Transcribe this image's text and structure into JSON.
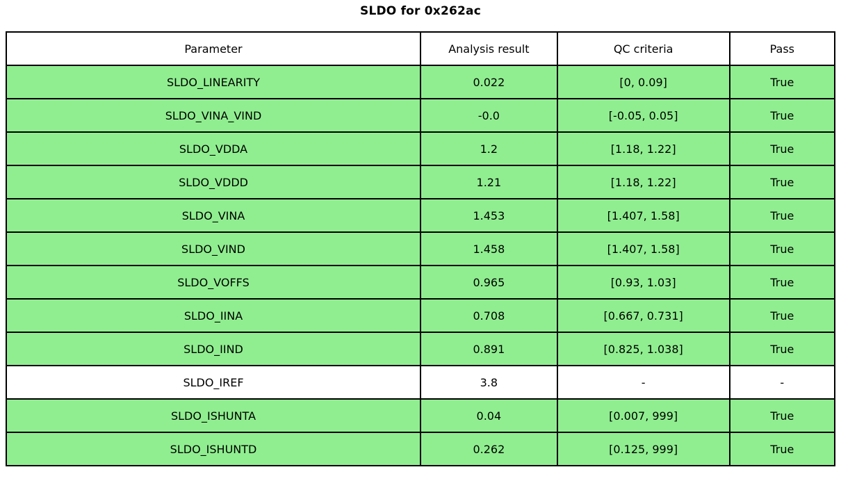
{
  "title": "SLDO for 0x262ac",
  "chart_data": {
    "type": "table",
    "title": "SLDO for 0x262ac",
    "columns": [
      "Parameter",
      "Analysis result",
      "QC criteria",
      "Pass"
    ],
    "rows": [
      {
        "parameter": "SLDO_LINEARITY",
        "result": "0.022",
        "criteria": "[0, 0.09]",
        "pass": "True",
        "highlighted": true
      },
      {
        "parameter": "SLDO_VINA_VIND",
        "result": "-0.0",
        "criteria": "[-0.05, 0.05]",
        "pass": "True",
        "highlighted": true
      },
      {
        "parameter": "SLDO_VDDA",
        "result": "1.2",
        "criteria": "[1.18, 1.22]",
        "pass": "True",
        "highlighted": true
      },
      {
        "parameter": "SLDO_VDDD",
        "result": "1.21",
        "criteria": "[1.18, 1.22]",
        "pass": "True",
        "highlighted": true
      },
      {
        "parameter": "SLDO_VINA",
        "result": "1.453",
        "criteria": "[1.407, 1.58]",
        "pass": "True",
        "highlighted": true
      },
      {
        "parameter": "SLDO_VIND",
        "result": "1.458",
        "criteria": "[1.407, 1.58]",
        "pass": "True",
        "highlighted": true
      },
      {
        "parameter": "SLDO_VOFFS",
        "result": "0.965",
        "criteria": "[0.93, 1.03]",
        "pass": "True",
        "highlighted": true
      },
      {
        "parameter": "SLDO_IINA",
        "result": "0.708",
        "criteria": "[0.667, 0.731]",
        "pass": "True",
        "highlighted": true
      },
      {
        "parameter": "SLDO_IIND",
        "result": "0.891",
        "criteria": "[0.825, 1.038]",
        "pass": "True",
        "highlighted": true
      },
      {
        "parameter": "SLDO_IREF",
        "result": "3.8",
        "criteria": "-",
        "pass": "-",
        "highlighted": false
      },
      {
        "parameter": "SLDO_ISHUNTA",
        "result": "0.04",
        "criteria": "[0.007, 999]",
        "pass": "True",
        "highlighted": true
      },
      {
        "parameter": "SLDO_ISHUNTD",
        "result": "0.262",
        "criteria": "[0.125, 999]",
        "pass": "True",
        "highlighted": true
      }
    ],
    "colors": {
      "pass_row_background": "#90EE90",
      "neutral_row_background": "#FFFFFF",
      "border": "#000000",
      "text": "#000000"
    },
    "layout": {
      "grid": true,
      "legend": "none"
    }
  }
}
